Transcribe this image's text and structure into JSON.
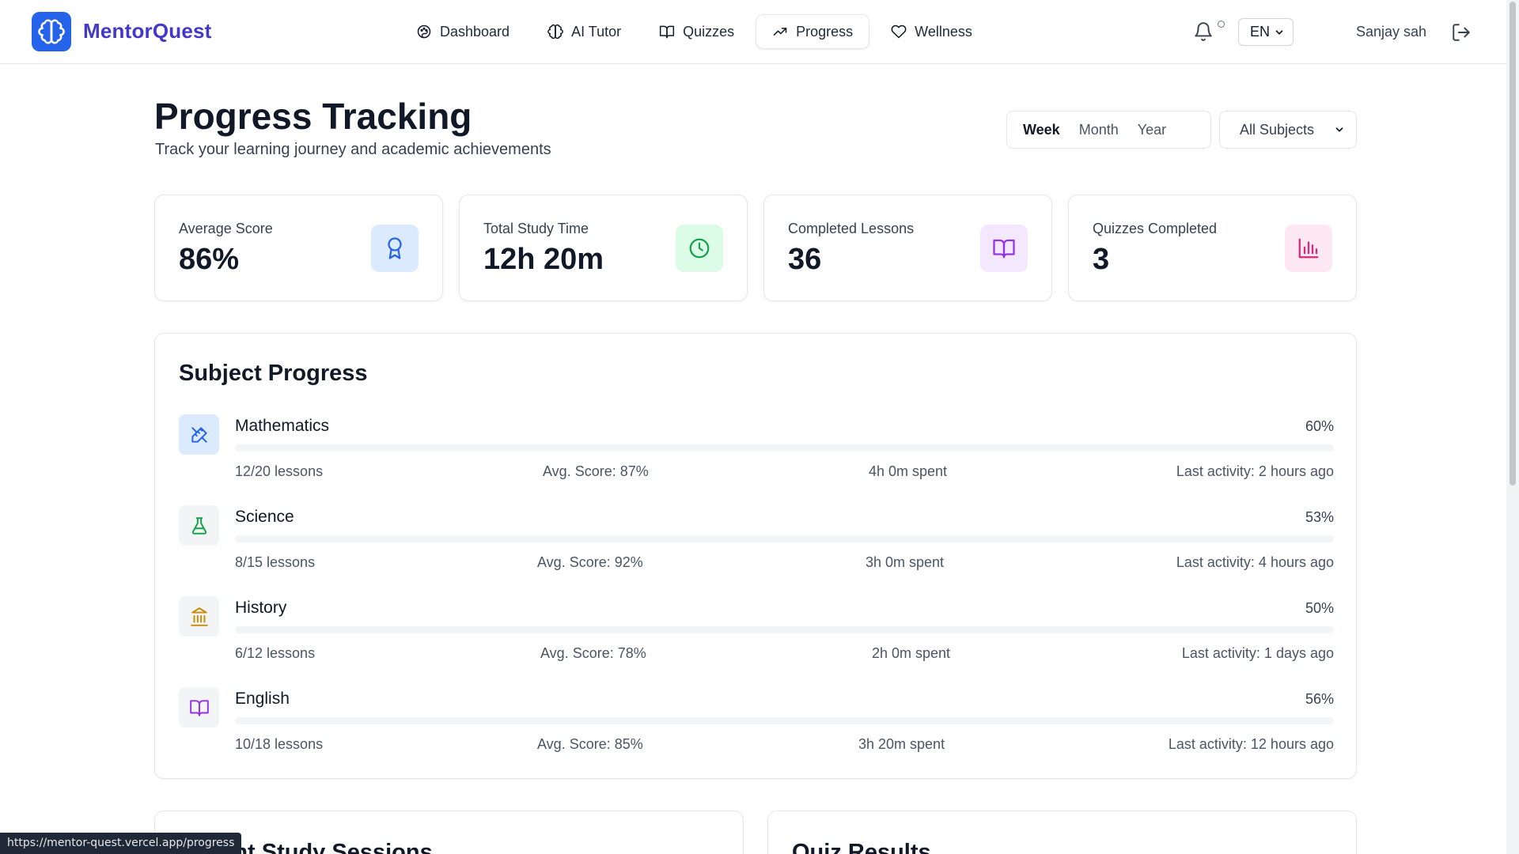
{
  "header": {
    "brand": "MentorQuest",
    "nav": [
      {
        "label": "Dashboard",
        "icon": "palette-icon"
      },
      {
        "label": "AI Tutor",
        "icon": "brain-icon"
      },
      {
        "label": "Quizzes",
        "icon": "book-open-icon"
      },
      {
        "label": "Progress",
        "icon": "trending-up-icon",
        "active": true
      },
      {
        "label": "Wellness",
        "icon": "heart-icon"
      }
    ],
    "language": "EN",
    "user_name": "Sanjay sah"
  },
  "page": {
    "title": "Progress Tracking",
    "subtitle": "Track your learning journey and academic achievements"
  },
  "filters": {
    "periods": [
      "Week",
      "Month",
      "Year"
    ],
    "active_period": "Week",
    "subject_filter": "All Subjects"
  },
  "stats": [
    {
      "label": "Average Score",
      "value": "86%",
      "icon": "award-icon",
      "bg": "#dbeafe",
      "fg": "#2563eb"
    },
    {
      "label": "Total Study Time",
      "value": "12h 20m",
      "icon": "clock-icon",
      "bg": "#dcfce7",
      "fg": "#16a34a"
    },
    {
      "label": "Completed Lessons",
      "value": "36",
      "icon": "book-open-icon",
      "bg": "#f3e8ff",
      "fg": "#9333ea"
    },
    {
      "label": "Quizzes Completed",
      "value": "3",
      "icon": "bar-chart-icon",
      "bg": "#fce7f3",
      "fg": "#db2777"
    }
  ],
  "subject_progress": {
    "title": "Subject Progress",
    "subjects": [
      {
        "name": "Mathematics",
        "percent": "60%",
        "progress": 0.6,
        "lessons": "12/20 lessons",
        "avg_score": "Avg. Score: 87%",
        "time": "4h 0m spent",
        "last_activity": "Last activity: 2 hours ago",
        "icon": "math-tools-icon",
        "bg": "#dbeafe",
        "fg": "#2563eb"
      },
      {
        "name": "Science",
        "percent": "53%",
        "progress": 0.53,
        "lessons": "8/15 lessons",
        "avg_score": "Avg. Score: 92%",
        "time": "3h 0m spent",
        "last_activity": "Last activity: 4 hours ago",
        "icon": "flask-icon",
        "bg": "#f3f4f6",
        "fg": "#16a34a"
      },
      {
        "name": "History",
        "percent": "50%",
        "progress": 0.5,
        "lessons": "6/12 lessons",
        "avg_score": "Avg. Score: 78%",
        "time": "2h 0m spent",
        "last_activity": "Last activity: 1 days ago",
        "icon": "landmark-icon",
        "bg": "#f3f4f6",
        "fg": "#ca8a04"
      },
      {
        "name": "English",
        "percent": "56%",
        "progress": 0.56,
        "lessons": "10/18 lessons",
        "avg_score": "Avg. Score: 85%",
        "time": "3h 20m spent",
        "last_activity": "Last activity: 12 hours ago",
        "icon": "book-open-icon",
        "bg": "#f3f4f6",
        "fg": "#9333ea"
      }
    ]
  },
  "lower_sections": {
    "recent_sessions_title": "Recent Study Sessions",
    "quiz_results_title": "Quiz Results"
  },
  "status_url": "https://mentor-quest.vercel.app/progress"
}
